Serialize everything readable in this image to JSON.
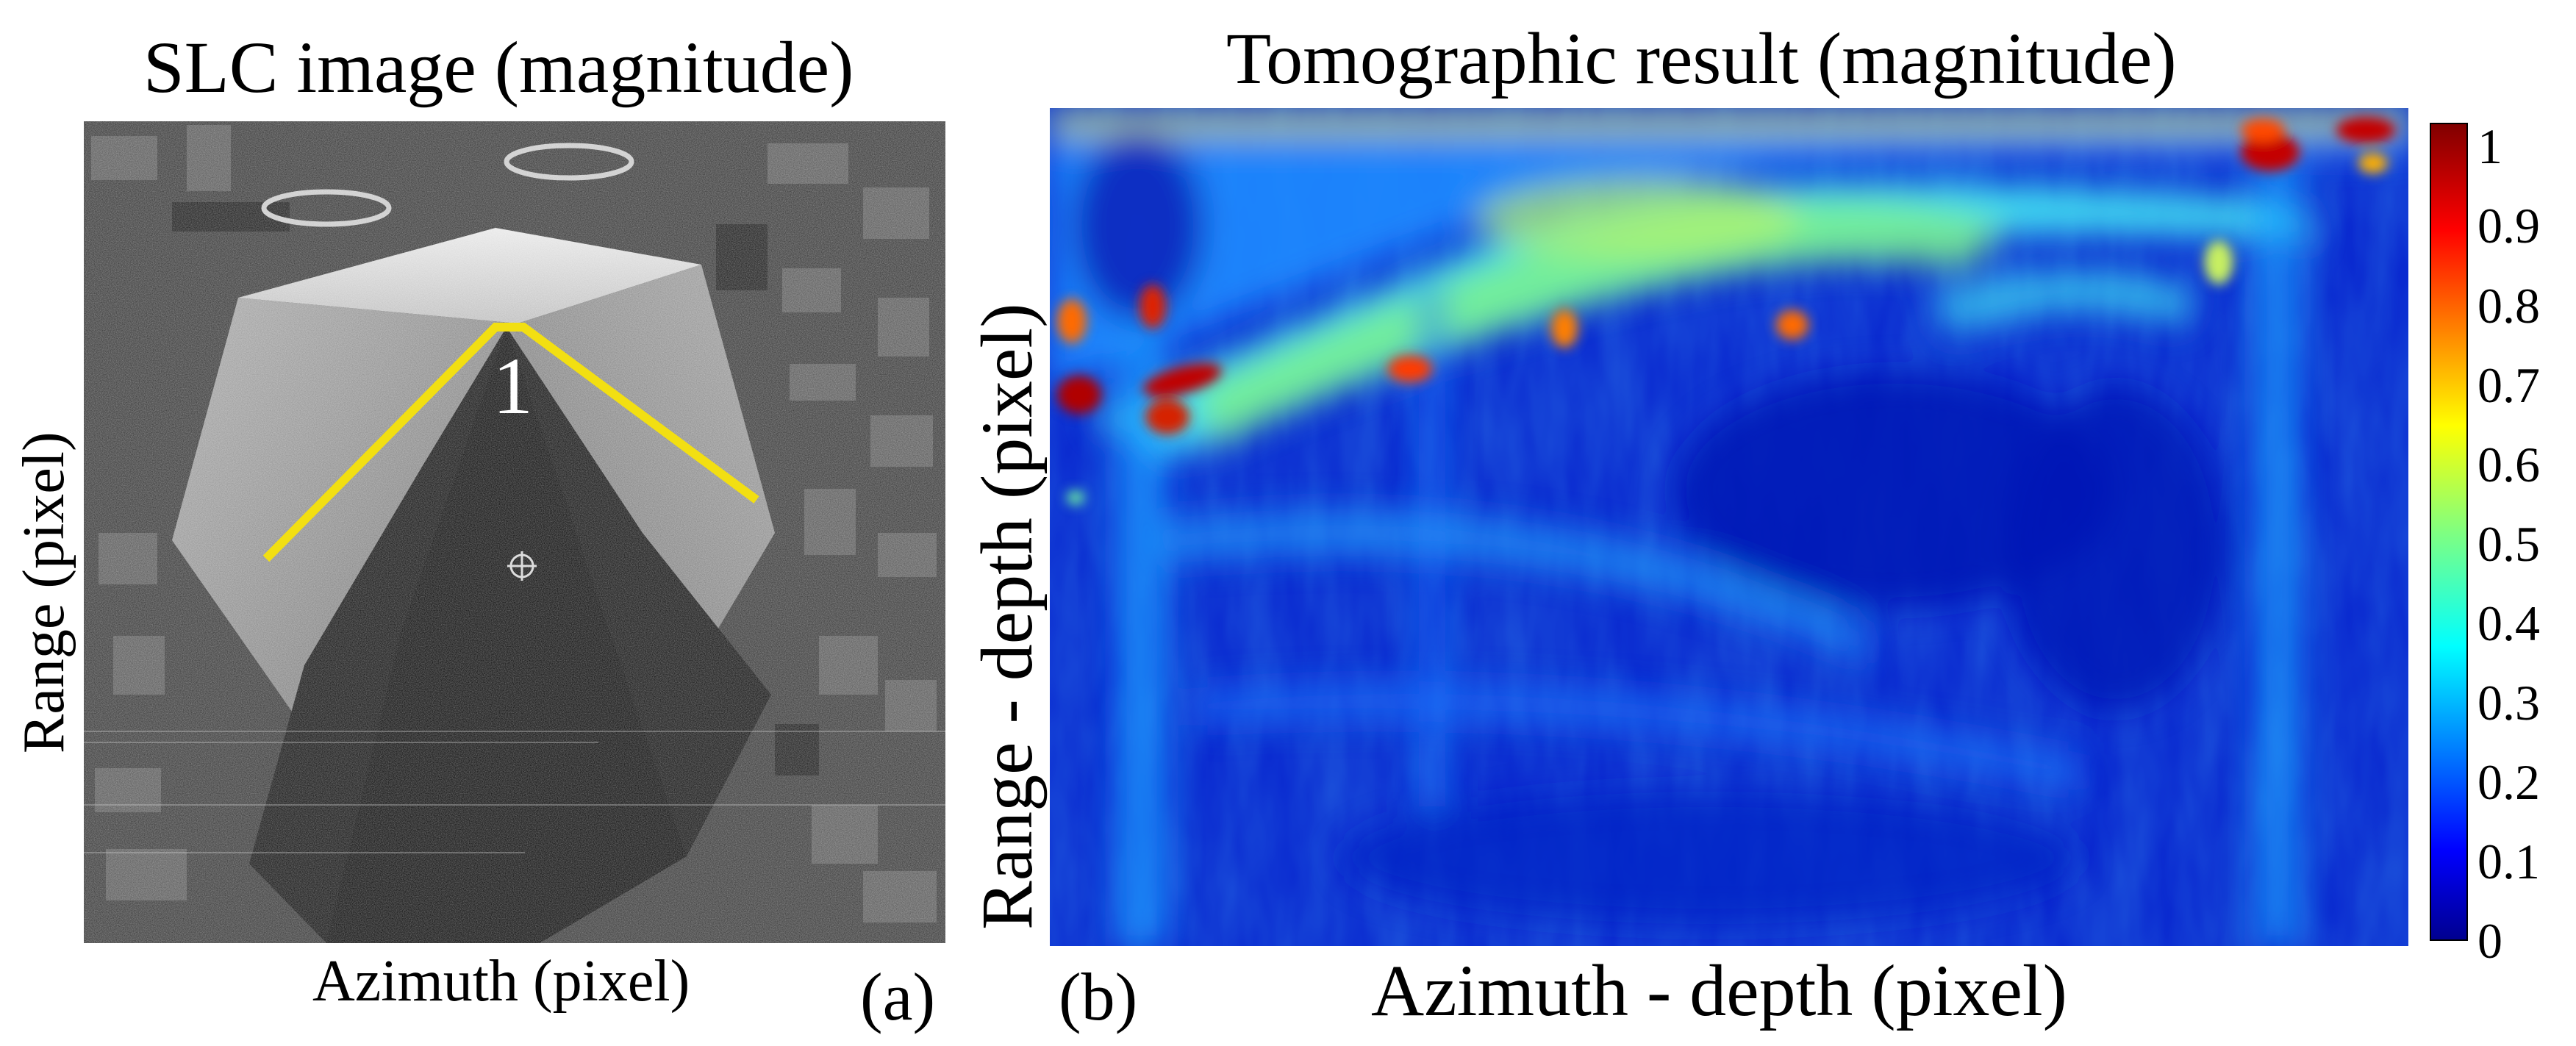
{
  "panel_a": {
    "title": "SLC image (magnitude)",
    "y_label": "Range (pixel)",
    "x_label": "Azimuth (pixel)",
    "tag": "(a)",
    "marker_label": "1",
    "line_color": "#f2df12"
  },
  "panel_b": {
    "title": "Tomographic result (magnitude)",
    "y_label": "Range - depth (pixel)",
    "x_label": "Azimuth - depth (pixel)",
    "tag": "(b)"
  },
  "colorbar": {
    "colormap": "jet",
    "min": 0,
    "max": 1.03,
    "ticks": [
      "1",
      "0.9",
      "0.8",
      "0.7",
      "0.6",
      "0.5",
      "0.4",
      "0.3",
      "0.2",
      "0.1",
      "0"
    ],
    "tick_values": [
      1,
      0.9,
      0.8,
      0.7,
      0.6,
      0.5,
      0.4,
      0.3,
      0.2,
      0.1,
      0
    ]
  }
}
